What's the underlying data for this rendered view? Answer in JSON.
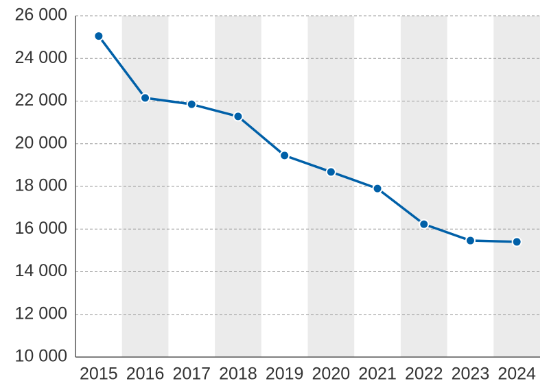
{
  "chart_data": {
    "type": "line",
    "categories": [
      "2015",
      "2016",
      "2017",
      "2018",
      "2019",
      "2020",
      "2021",
      "2022",
      "2023",
      "2024"
    ],
    "series": [
      {
        "color": "#0060a8",
        "values": [
          25050,
          22150,
          21850,
          21280,
          19450,
          18680,
          17900,
          16230,
          15460,
          15400
        ]
      }
    ],
    "ylim": [
      10000,
      26000
    ],
    "yticks": [
      {
        "value": 10000,
        "label": "10 000"
      },
      {
        "value": 12000,
        "label": "12 000"
      },
      {
        "value": 14000,
        "label": "14 000"
      },
      {
        "value": 16000,
        "label": "16 000"
      },
      {
        "value": 18000,
        "label": "18 000"
      },
      {
        "value": 20000,
        "label": "20 000"
      },
      {
        "value": 22000,
        "label": "22 000"
      },
      {
        "value": 24000,
        "label": "24 000"
      },
      {
        "value": 26000,
        "label": "26 000"
      }
    ],
    "grid": true
  }
}
